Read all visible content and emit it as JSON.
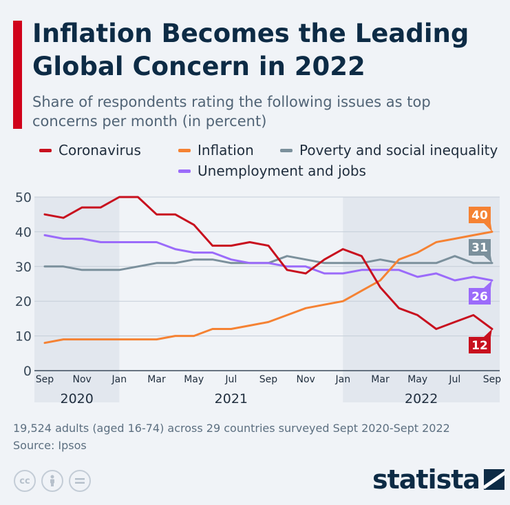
{
  "header": {
    "title": "Inflation Becomes the Leading Global Concern in 2022",
    "subtitle": "Share of respondents rating the following issues as top concerns per month (in percent)"
  },
  "footer": {
    "note": "19,524 adults (aged 16-74) across 29 countries surveyed Sept 2020-Sept 2022",
    "source": "Source: Ipsos",
    "brand": "statista",
    "license_icons": [
      "cc-icon",
      "attribution-icon",
      "no-derivatives-icon"
    ]
  },
  "colors": {
    "accent": "#d0021b",
    "background": "#f0f3f7",
    "shaded_year": "#e2e7ee"
  },
  "chart_data": {
    "type": "line",
    "x": [
      "Sep",
      "Oct",
      "Nov",
      "Dec",
      "Jan",
      "Feb",
      "Mar",
      "Apr",
      "May",
      "Jun",
      "Jul",
      "Aug",
      "Sep",
      "Oct",
      "Nov",
      "Dec",
      "Jan",
      "Feb",
      "Mar",
      "Apr",
      "May",
      "Jun",
      "Jul",
      "Aug",
      "Sep"
    ],
    "x_tick_labels": [
      "Sep",
      "Nov",
      "Jan",
      "Mar",
      "May",
      "Jul",
      "Sep",
      "Nov",
      "Jan",
      "Mar",
      "May",
      "Jul",
      "Sep"
    ],
    "years": [
      {
        "label": "2020",
        "start": 0,
        "end": 4
      },
      {
        "label": "2021",
        "start": 4,
        "end": 16
      },
      {
        "label": "2022",
        "start": 16,
        "end": 24
      }
    ],
    "shaded_years": [
      "2020",
      "2022"
    ],
    "ylim": [
      0,
      50
    ],
    "yticks": [
      0,
      10,
      20,
      30,
      40,
      50
    ],
    "grid": true,
    "legend_position": "top",
    "series": [
      {
        "name": "Coronavirus",
        "color": "#c8101e",
        "end_label": "12",
        "values": [
          45,
          44,
          47,
          47,
          50,
          50,
          45,
          45,
          42,
          36,
          36,
          37,
          36,
          29,
          28,
          32,
          35,
          33,
          24,
          18,
          16,
          12,
          14,
          16,
          12
        ]
      },
      {
        "name": "Inflation",
        "color": "#f58233",
        "end_label": "40",
        "values": [
          8,
          9,
          9,
          9,
          9,
          9,
          9,
          10,
          10,
          12,
          12,
          13,
          14,
          16,
          18,
          19,
          20,
          23,
          26,
          32,
          34,
          37,
          38,
          39,
          40
        ]
      },
      {
        "name": "Poverty and social inequality",
        "color": "#7b909c",
        "end_label": "31",
        "values": [
          30,
          30,
          29,
          29,
          29,
          30,
          31,
          31,
          32,
          32,
          31,
          31,
          31,
          33,
          32,
          31,
          31,
          31,
          32,
          31,
          31,
          31,
          33,
          31,
          31
        ]
      },
      {
        "name": "Unemployment and jobs",
        "color": "#9b6bfa",
        "end_label": "26",
        "values": [
          39,
          38,
          38,
          37,
          37,
          37,
          37,
          35,
          34,
          34,
          32,
          31,
          31,
          30,
          30,
          28,
          28,
          29,
          29,
          29,
          27,
          28,
          26,
          27,
          26
        ]
      }
    ]
  }
}
